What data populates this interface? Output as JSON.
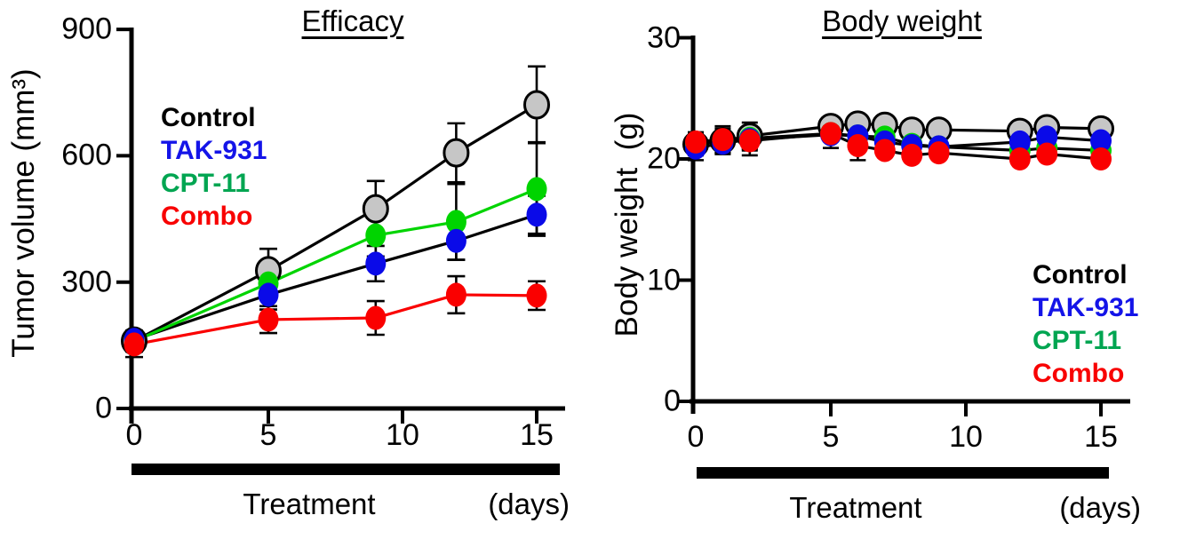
{
  "figure": {
    "background": "#ffffff"
  },
  "colors": {
    "axis": "#000000",
    "control_marker_fill": "#c6c6c6",
    "control_marker_edge": "#000000",
    "tak931_marker": "#0a0ae8",
    "cpt11_marker": "#00d400",
    "combo_marker": "#fa0000",
    "legend_control": "#000000",
    "legend_tak931": "#1414e8",
    "legend_cpt11": "#00a551",
    "legend_combo": "#f80000"
  },
  "chart_data": [
    {
      "type": "line",
      "title": "Efficacy",
      "ylabel": "Tumor volume (mm³)",
      "xlabel_bar": "Treatment",
      "xlabel_units": "(days)",
      "x": [
        0,
        5,
        9,
        12,
        15
      ],
      "xticks": [
        0,
        5,
        10,
        15
      ],
      "yticks": [
        0,
        300,
        600,
        900
      ],
      "xlim": [
        0,
        16
      ],
      "ylim": [
        0,
        900
      ],
      "grid": false,
      "legend_position": "top-left",
      "series": [
        {
          "name": "Control",
          "line_color": "#000000",
          "marker_fill": "#c6c6c6",
          "marker_edge": "#000000",
          "values": [
            160,
            327,
            474,
            607,
            721
          ],
          "errors": [
            25,
            52,
            66,
            70,
            91
          ]
        },
        {
          "name": "TAK-931",
          "line_color": "#000000",
          "marker_fill": "#0a0ae8",
          "marker_edge": "none",
          "values": [
            163,
            270,
            344,
            398,
            460
          ],
          "errors": [
            22,
            35,
            42,
            45,
            45
          ]
        },
        {
          "name": "CPT-11",
          "line_color": "#00d400",
          "marker_fill": "#00d400",
          "marker_edge": "none",
          "values": [
            160,
            297,
            411,
            443,
            521
          ],
          "errors": [
            22,
            30,
            50,
            90,
            111
          ]
        },
        {
          "name": "Combo",
          "line_color": "#fa0000",
          "marker_fill": "#fa0000",
          "marker_edge": "none",
          "values": [
            152,
            211,
            215,
            270,
            268
          ],
          "errors": [
            30,
            32,
            40,
            44,
            34
          ]
        }
      ],
      "legend": [
        {
          "label": "Control",
          "color": "#000000"
        },
        {
          "label": "TAK-931",
          "color": "#1414e8"
        },
        {
          "label": "CPT-11",
          "color": "#00a551"
        },
        {
          "label": "Combo",
          "color": "#f80000"
        }
      ]
    },
    {
      "type": "line",
      "title": "Body weight",
      "ylabel": "Body weight  (g)",
      "xlabel_bar": "Treatment",
      "xlabel_units": "(days)",
      "x": [
        0,
        1,
        2,
        5,
        6,
        7,
        8,
        9,
        12,
        13,
        15
      ],
      "xticks": [
        0,
        5,
        10,
        15
      ],
      "yticks": [
        0,
        10,
        20,
        30
      ],
      "xlim": [
        0,
        16
      ],
      "ylim": [
        0,
        30
      ],
      "grid": false,
      "legend_position": "bottom-right",
      "series": [
        {
          "name": "Control",
          "line_color": "#000000",
          "marker_fill": "#c6c6c6",
          "marker_edge": "#000000",
          "values": [
            21.2,
            21.5,
            21.9,
            22.7,
            22.9,
            22.8,
            22.4,
            22.4,
            22.3,
            22.6,
            22.5
          ],
          "errors": [
            0.9,
            1.0,
            1.1,
            0.6,
            0.5,
            0.5,
            0.5,
            0.5,
            0.5,
            0.5,
            0.5
          ]
        },
        {
          "name": "TAK-931",
          "line_color": "#000000",
          "marker_fill": "#0a0ae8",
          "marker_edge": "none",
          "values": [
            20.9,
            21.3,
            21.6,
            22.0,
            21.9,
            21.4,
            21.1,
            21.0,
            21.4,
            21.8,
            21.5
          ],
          "errors": [
            1.0,
            0.9,
            0.9,
            0.5,
            0.5,
            0.5,
            0.5,
            0.5,
            0.5,
            0.5,
            0.5
          ]
        },
        {
          "name": "CPT-11",
          "line_color": "#000000",
          "marker_fill": "#00d400",
          "marker_edge": "none",
          "values": [
            21.2,
            21.5,
            21.7,
            22.1,
            21.9,
            21.8,
            21.2,
            21.0,
            20.7,
            20.9,
            20.7
          ],
          "errors": [
            0.8,
            0.8,
            0.8,
            0.5,
            0.5,
            0.5,
            0.5,
            0.5,
            0.5,
            0.5,
            0.5
          ]
        },
        {
          "name": "Combo",
          "line_color": "#000000",
          "marker_fill": "#fa0000",
          "marker_edge": "none",
          "values": [
            21.4,
            21.6,
            21.5,
            22.1,
            21.1,
            20.7,
            20.3,
            20.5,
            20.0,
            20.4,
            20.0
          ],
          "errors": [
            0.8,
            1.1,
            1.2,
            1.2,
            1.2,
            0.5,
            0.5,
            0.5,
            0.5,
            0.5,
            0.5
          ]
        }
      ],
      "legend": [
        {
          "label": "Control",
          "color": "#000000"
        },
        {
          "label": "TAK-931",
          "color": "#1414e8"
        },
        {
          "label": "CPT-11",
          "color": "#00a551"
        },
        {
          "label": "Combo",
          "color": "#f80000"
        }
      ]
    }
  ]
}
